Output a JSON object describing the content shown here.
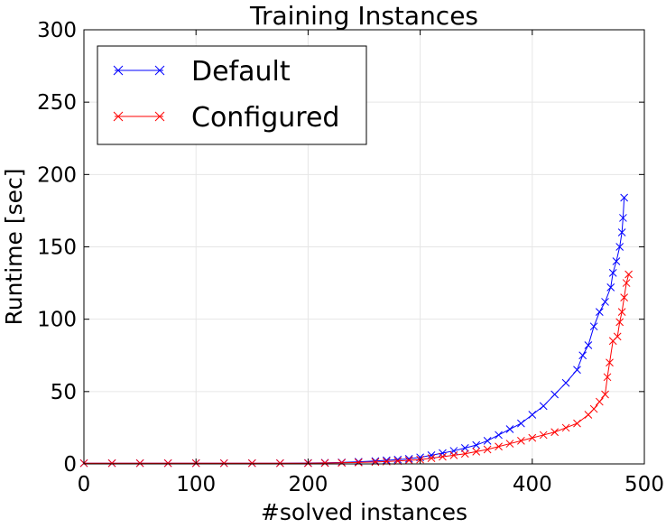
{
  "chart_data": {
    "type": "line",
    "title": "Training Instances",
    "xlabel": "#solved instances",
    "ylabel": "Runtime [sec]",
    "xlim": [
      0,
      500
    ],
    "ylim": [
      0,
      300
    ],
    "xticks": [
      "0",
      "100",
      "200",
      "300",
      "400",
      "500"
    ],
    "yticks": [
      "0",
      "50",
      "100",
      "150",
      "200",
      "250",
      "300"
    ],
    "grid": true,
    "legend_position": "top-left",
    "marker": "x",
    "series": [
      {
        "name": "Default",
        "color": "#0000ff",
        "points": [
          [
            0,
            0.5
          ],
          [
            25,
            0.5
          ],
          [
            50,
            0.5
          ],
          [
            75,
            0.5
          ],
          [
            100,
            0.5
          ],
          [
            125,
            0.5
          ],
          [
            150,
            0.5
          ],
          [
            175,
            0.5
          ],
          [
            200,
            0.6
          ],
          [
            215,
            0.8
          ],
          [
            230,
            1
          ],
          [
            245,
            1.5
          ],
          [
            260,
            2
          ],
          [
            270,
            2.5
          ],
          [
            280,
            3
          ],
          [
            290,
            3.5
          ],
          [
            300,
            4.5
          ],
          [
            310,
            6
          ],
          [
            320,
            7.5
          ],
          [
            330,
            9
          ],
          [
            340,
            11
          ],
          [
            350,
            13
          ],
          [
            360,
            16
          ],
          [
            370,
            20
          ],
          [
            380,
            24
          ],
          [
            390,
            28
          ],
          [
            400,
            34
          ],
          [
            410,
            40
          ],
          [
            420,
            48
          ],
          [
            430,
            56
          ],
          [
            440,
            65
          ],
          [
            445,
            75
          ],
          [
            450,
            82
          ],
          [
            455,
            95
          ],
          [
            460,
            105
          ],
          [
            465,
            112
          ],
          [
            470,
            122
          ],
          [
            472,
            132
          ],
          [
            475,
            140
          ],
          [
            478,
            150
          ],
          [
            480,
            160
          ],
          [
            481,
            170
          ],
          [
            482,
            184
          ]
        ]
      },
      {
        "name": "Configured",
        "color": "#ff0000",
        "points": [
          [
            0,
            0.5
          ],
          [
            25,
            0.5
          ],
          [
            50,
            0.5
          ],
          [
            75,
            0.5
          ],
          [
            100,
            0.5
          ],
          [
            125,
            0.5
          ],
          [
            150,
            0.5
          ],
          [
            175,
            0.5
          ],
          [
            200,
            0.5
          ],
          [
            215,
            0.6
          ],
          [
            230,
            0.8
          ],
          [
            245,
            1
          ],
          [
            260,
            1.3
          ],
          [
            270,
            1.6
          ],
          [
            280,
            2
          ],
          [
            290,
            2.5
          ],
          [
            300,
            3
          ],
          [
            310,
            4
          ],
          [
            320,
            5
          ],
          [
            330,
            6
          ],
          [
            340,
            7
          ],
          [
            350,
            8.5
          ],
          [
            360,
            10
          ],
          [
            370,
            12
          ],
          [
            380,
            14
          ],
          [
            390,
            16
          ],
          [
            400,
            18
          ],
          [
            410,
            20
          ],
          [
            420,
            22
          ],
          [
            430,
            25
          ],
          [
            440,
            28
          ],
          [
            450,
            34
          ],
          [
            455,
            38
          ],
          [
            460,
            43
          ],
          [
            465,
            48
          ],
          [
            467,
            60
          ],
          [
            469,
            70
          ],
          [
            472,
            85
          ],
          [
            476,
            88
          ],
          [
            478,
            98
          ],
          [
            480,
            105
          ],
          [
            482,
            115
          ],
          [
            484,
            125
          ],
          [
            486,
            131
          ]
        ]
      }
    ]
  }
}
